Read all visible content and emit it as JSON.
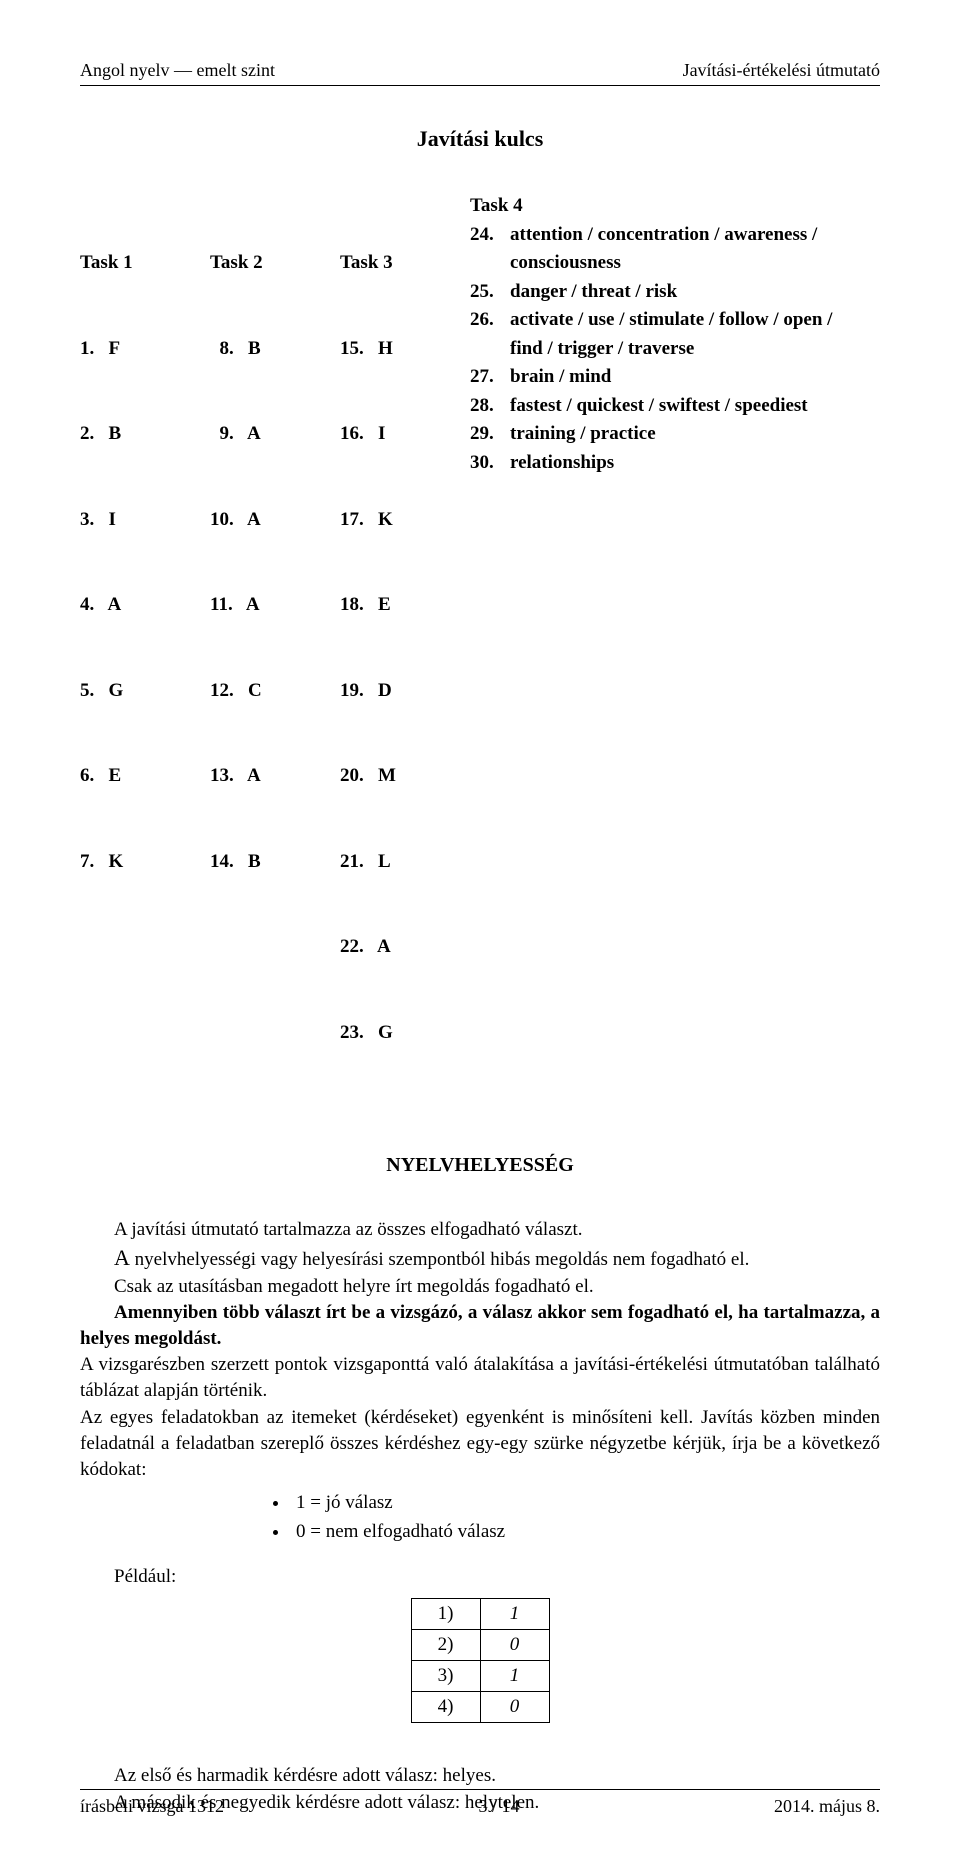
{
  "header": {
    "left": "Angol nyelv — emelt szint",
    "right": "Javítási-értékelési útmutató"
  },
  "title": "Javítási kulcs",
  "tasks": {
    "col1": {
      "header": "Task 1",
      "rows": [
        "1.   F",
        "2.   B",
        "3.   I",
        "4.   A",
        "5.   G",
        "6.   E",
        "7.   K"
      ]
    },
    "col2": {
      "header": "Task 2",
      "rows": [
        "  8.   B",
        "  9.   A",
        "10.   A",
        "11.   A",
        "12.   C",
        "13.   A",
        "14.   B"
      ]
    },
    "col3": {
      "header": "Task 3",
      "rows": [
        "15.   H",
        "16.   I",
        "17.   K",
        "18.   E",
        "19.   D",
        "20.   M",
        "21.   L",
        "22.   A",
        "23.   G"
      ]
    },
    "col4": {
      "header": "Task 4",
      "rows": [
        {
          "num": "24.",
          "txt": "attention / concentration / awareness /"
        },
        {
          "num": "",
          "txt": "consciousness",
          "indent": true
        },
        {
          "num": "25.",
          "txt": "danger / threat / risk"
        },
        {
          "num": "26.",
          "txt": "activate / use / stimulate / follow / open /"
        },
        {
          "num": "",
          "txt": "find / trigger / traverse",
          "indent": true
        },
        {
          "num": "27.",
          "txt": "brain / mind"
        },
        {
          "num": "28.",
          "txt": "fastest / quickest / swiftest / speediest"
        },
        {
          "num": "29.",
          "txt": "training / practice"
        },
        {
          "num": "30.",
          "txt": "relationships"
        }
      ]
    }
  },
  "section_title": "NYELVHELYESSÉG",
  "body": {
    "p1": "A javítási útmutató tartalmazza az összes elfogadható választ.",
    "p2_a": "A",
    "p2_rest": " nyelvhelyességi vagy helyesírási szempontból hibás megoldás nem fogadható el.",
    "p3": "Csak az utasításban megadott helyre írt megoldás fogadható el.",
    "p4": "Amennyiben több választ írt be a vizsgázó, a válasz akkor sem fogadható el, ha tartalmazza, a helyes megoldást.",
    "p5": "A vizsgarészben szerzett pontok vizsgaponttá való átalakítása a javítási-értékelési útmutatóban található táblázat alapján történik.",
    "p6": "Az egyes feladatokban az itemeket (kérdéseket) egyenként is minősíteni kell. Javítás közben minden feladatnál a feladatban szereplő összes kérdéshez egy-egy szürke négyzetbe kérjük, írja be a következő kódokat:"
  },
  "bullets": [
    "1 = jó válasz",
    "0 = nem elfogadható válasz"
  ],
  "example_label": "Például:",
  "example_rows": [
    [
      "1)",
      "1"
    ],
    [
      "2)",
      "0"
    ],
    [
      "3)",
      "1"
    ],
    [
      "4)",
      "0"
    ]
  ],
  "answers": {
    "p1": "Az első és harmadik kérdésre adott válasz: helyes.",
    "p2": "A második és negyedik kérdésre adott válasz: helytelen."
  },
  "footer": {
    "left": "írásbeli vizsga 1312",
    "center": "3 / 14",
    "right": "2014. május 8."
  }
}
